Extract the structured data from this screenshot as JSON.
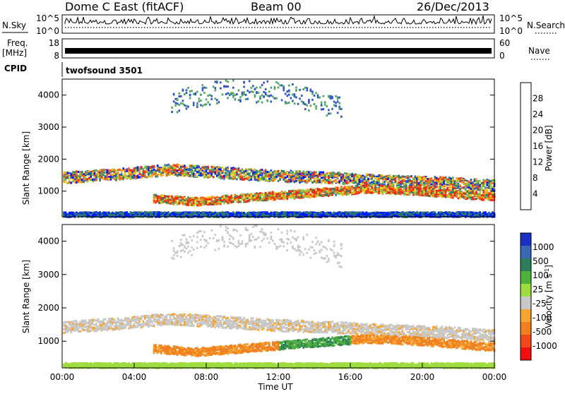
{
  "chart_data": [
    {
      "type": "line",
      "panel": "noise",
      "header": {
        "station": "Dome C East (fitACF)",
        "beam": "Beam 00",
        "date": "26/Dec/2013"
      },
      "left_label": "N.Sky",
      "right_label": "N.Search",
      "yticks_left": [
        "10^5",
        "10^0"
      ],
      "yticks_right": [
        "10^5",
        "10^0"
      ],
      "baseline_level": 0.5,
      "max_level": 0.8
    },
    {
      "type": "line",
      "panel": "frequency",
      "left_label": "Freq.",
      "left_unit": "[MHz]",
      "right_label": "Nave",
      "yticks_left": [
        "18",
        "8"
      ],
      "yticks_right": [
        "60",
        "0"
      ],
      "level": 0.5
    },
    {
      "type": "heatmap",
      "panel": "cpid",
      "label": "CPID",
      "program": "twofsound 3501"
    },
    {
      "type": "heatmap",
      "panel": "power",
      "ylabel": "Slant Range [km]",
      "yticks": [
        "1000",
        "2000",
        "3000",
        "4000"
      ],
      "ylim": [
        200,
        4500
      ],
      "colorbar": {
        "label": "Power [dB]",
        "ticks": [
          "4",
          "8",
          "12",
          "16",
          "20",
          "24",
          "28"
        ],
        "range": [
          0,
          30
        ],
        "colors": [
          "#0018ff",
          "#2f56c4",
          "#2d7a6d",
          "#52a866",
          "#9ccc3a",
          "#f3d21a",
          "#f7a21a",
          "#f66a18",
          "#f02818"
        ]
      },
      "bands": [
        {
          "name": "main-band",
          "x0": 0.0,
          "x1": 24.0,
          "center": [
            1450,
            1550,
            1700,
            1600,
            1500,
            1450,
            1350,
            1300,
            1200
          ],
          "width": 350
        },
        {
          "name": "lower-band",
          "x0": 5.0,
          "x1": 24.0,
          "center": [
            800,
            700,
            800,
            900,
            1000,
            1100,
            1050,
            950,
            850
          ],
          "width": 250
        },
        {
          "name": "upper-scatter",
          "x0": 6.0,
          "x1": 15.5,
          "center": [
            3800,
            4200,
            4100,
            3600
          ],
          "width": 700
        },
        {
          "name": "near-range",
          "x0": 0.0,
          "x1": 24.0,
          "center": [
            300,
            300
          ],
          "width": 150
        }
      ]
    },
    {
      "type": "heatmap",
      "panel": "velocity",
      "ylabel": "Slant Range [km]",
      "xlabel": "Time UT",
      "xticks": [
        "00:00",
        "04:00",
        "08:00",
        "12:00",
        "16:00",
        "20:00",
        "00:00"
      ],
      "xlim": [
        0,
        24
      ],
      "yticks": [
        "1000",
        "2000",
        "3000",
        "4000"
      ],
      "ylim": [
        200,
        4500
      ],
      "colorbar": {
        "label": "Velocity [m s",
        "label_sup": "-1",
        "label_end": "]",
        "ticks": [
          "1000",
          "500",
          "100",
          "25",
          "-25",
          "-100",
          "-500",
          "-1000"
        ],
        "colors": [
          "#1c2fc4",
          "#3a68b2",
          "#2d7d5d",
          "#4cb03b",
          "#9fdc3f",
          "#c8c8c8",
          "#f7a630",
          "#f08020",
          "#f04818",
          "#f00e10"
        ]
      }
    }
  ]
}
